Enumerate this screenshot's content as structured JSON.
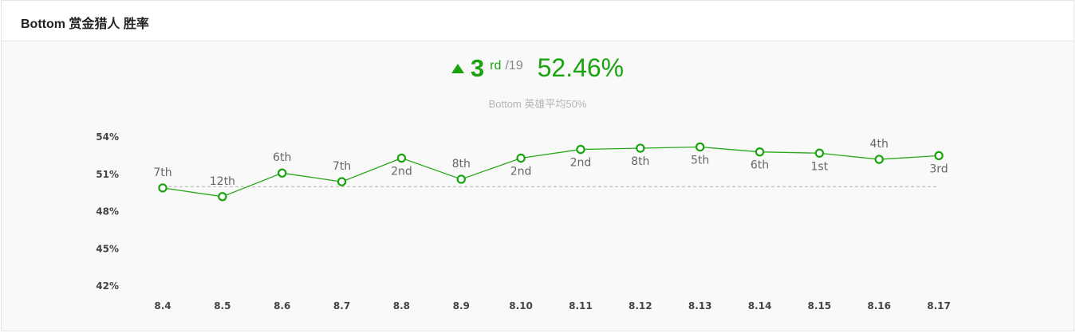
{
  "header": {
    "title": "Bottom 赏金猎人 胜率"
  },
  "summary": {
    "trend_icon": "triangle-up-icon",
    "rank": "3",
    "rank_suffix": "rd",
    "rank_total": "/19",
    "win_rate": "52.46%",
    "subtitle": "Bottom 英雄平均50%"
  },
  "colors": {
    "accent": "#1aa30f",
    "line": "#2aa81a",
    "reference_line": "#bbbbbb",
    "point_fill": "#ffffff"
  },
  "chart_data": {
    "type": "line",
    "categories": [
      "8.4",
      "8.5",
      "8.6",
      "8.7",
      "8.8",
      "8.9",
      "8.10",
      "8.11",
      "8.12",
      "8.13",
      "8.14",
      "8.15",
      "8.16",
      "8.17"
    ],
    "series": [
      {
        "values": [
          49.9,
          49.2,
          51.1,
          50.4,
          52.3,
          50.6,
          52.3,
          53.0,
          53.1,
          53.2,
          52.8,
          52.7,
          52.2,
          52.5
        ],
        "point_labels": [
          "7th",
          "12th",
          "6th",
          "7th",
          "2nd",
          "8th",
          "2nd",
          "2nd",
          "8th",
          "5th",
          "6th",
          "1st",
          "4th",
          "3rd"
        ],
        "label_position": [
          "above",
          "above",
          "above",
          "above",
          "below",
          "above",
          "below",
          "below",
          "below",
          "below",
          "below",
          "below",
          "above",
          "below"
        ]
      }
    ],
    "reference_line": 50,
    "ylim": [
      42,
      55
    ],
    "yticks": [
      42,
      45,
      48,
      51,
      54
    ],
    "ytick_labels": [
      "42%",
      "45%",
      "48%",
      "51%",
      "54%"
    ],
    "grid": false,
    "legend": "none"
  }
}
